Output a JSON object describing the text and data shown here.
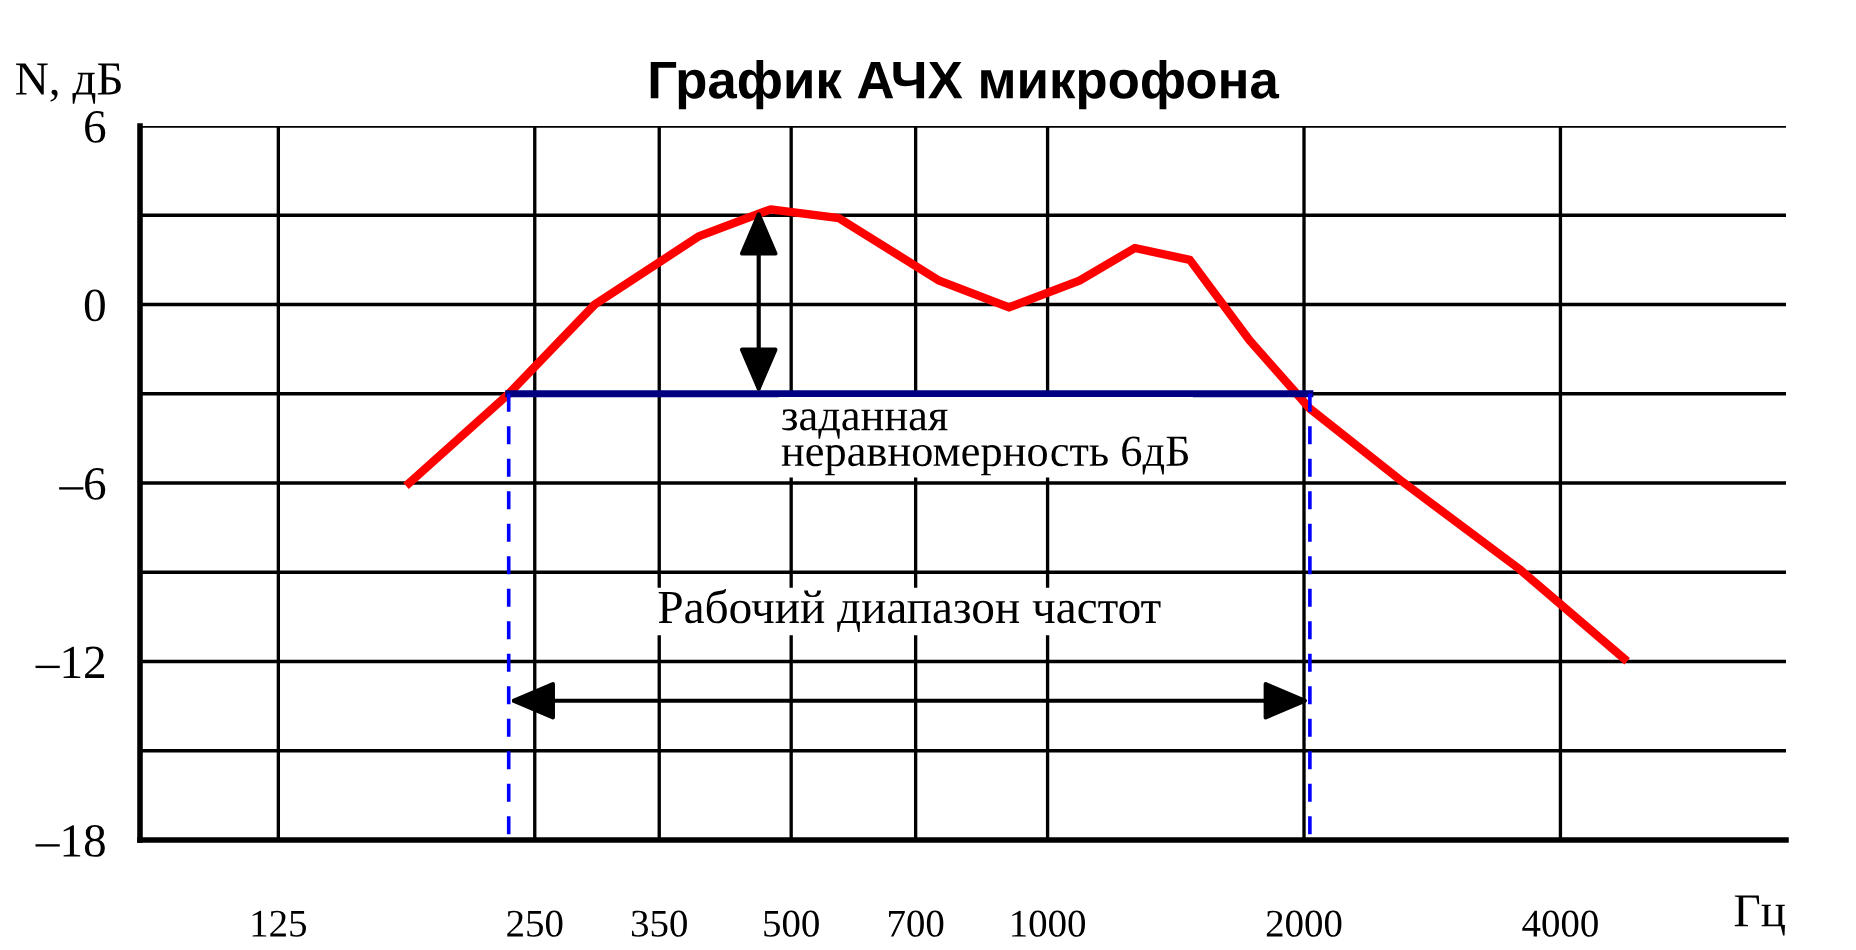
{
  "chart_data": {
    "type": "line",
    "title": "График АЧХ микрофона",
    "ylabel": "N, дБ",
    "xlabel": "Гц",
    "log": "x",
    "grid": true,
    "marker": "none",
    "xlim": [
      86,
      7360
    ],
    "xticks": [
      125,
      250,
      350,
      500,
      700,
      1000,
      2000,
      4000
    ],
    "ylim": [
      -18,
      6
    ],
    "yticks": [
      6,
      {
        "value": 3,
        "label": null
      },
      0,
      {
        "value": -3,
        "label": null
      },
      {
        "value": -6,
        "label": "–6"
      },
      {
        "value": -9,
        "label": null
      },
      {
        "value": -12,
        "label": "–12"
      },
      {
        "value": -15,
        "label": null
      },
      {
        "value": -18,
        "label": "–18"
      }
    ],
    "series": [
      {
        "color": "#ff0000",
        "x": [
          178,
          233,
          294,
          390,
          473,
          569,
          746,
          901,
          1090,
          1266,
          1469,
          1726,
          2032,
          2594,
          3583,
          4750
        ],
        "values": [
          -6,
          -3,
          0,
          2.3,
          3.2,
          2.9,
          0.8,
          -0.1,
          0.8,
          1.9,
          1.5,
          -1.2,
          -3.5,
          -5.9,
          -8.9,
          -11.9
        ]
      },
      {
        "color": "#000080",
        "x": [
          233,
          2032
        ],
        "values": [
          -3,
          -3
        ]
      },
      {
        "color": "#0000ff",
        "x": [
          233,
          233
        ],
        "values": [
          -3,
          -18
        ],
        "line_style": "dashed"
      },
      {
        "color": "#0000ff",
        "x": [
          2032,
          2032
        ],
        "values": [
          -3,
          -18
        ],
        "line_style": "dashed"
      }
    ],
    "annotations": [
      {
        "text": "заданная\nнеравномерность 6дБ",
        "x": 458,
        "y": -3
      },
      "Рабочий диапазон частот"
    ]
  }
}
